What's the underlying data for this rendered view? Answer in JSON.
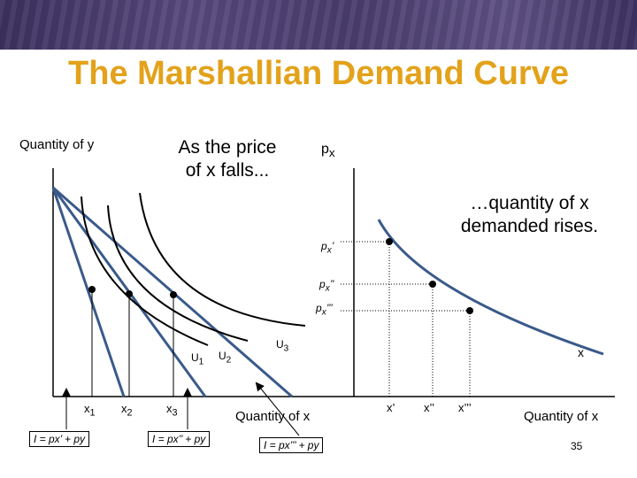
{
  "slide": {
    "title": "The Marshallian Demand Curve",
    "page_number": "35",
    "colors": {
      "title": "#e3a21a",
      "banner": "#4a3d6e",
      "curve": "#3a5a8a"
    }
  },
  "left_panel": {
    "y_axis_label": "Quantity of y",
    "x_axis_label": "Quantity of x",
    "callout": "As the price of x falls...",
    "callout_line1": "As the price",
    "callout_line2": "of x falls...",
    "indifference_labels": {
      "u1": "U",
      "u1_sub": "1",
      "u2": "U",
      "u2_sub": "2",
      "u3": "U",
      "u3_sub": "3"
    },
    "x_ticks": {
      "x1": "x",
      "x1_sub": "1",
      "x2": "x",
      "x2_sub": "2",
      "x3": "x",
      "x3_sub": "3"
    },
    "budget_labels": {
      "b1": "I = px’ + py",
      "b2": "I = px’’ + py",
      "b3": "I = px’’’ + py"
    }
  },
  "right_panel": {
    "y_axis_label": "p",
    "y_axis_sub": "x",
    "x_axis_label": "Quantity of x",
    "curve_label": "x",
    "callout_line1": "…quantity of x",
    "callout_line2": "demanded rises.",
    "price_labels": {
      "p1": "p",
      "p1_sub": "x",
      "p1_mark": "’",
      "p2": "p",
      "p2_sub": "x",
      "p2_mark": "’’",
      "p3": "p",
      "p3_sub": "x",
      "p3_mark": "’’’"
    },
    "x_ticks": {
      "t1": "x’",
      "t2": "x’’",
      "t3": "x’’’"
    }
  }
}
